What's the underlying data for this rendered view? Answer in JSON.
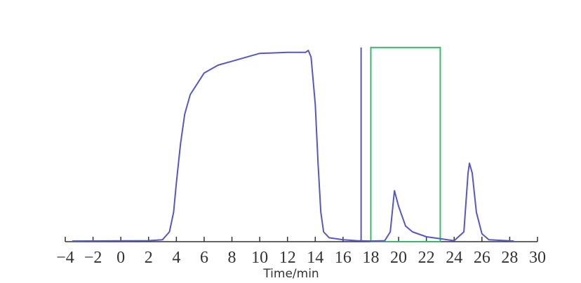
{
  "chart_data": {
    "type": "line",
    "x_label": "Time/min",
    "xlim": [
      -4,
      30
    ],
    "xticks": [
      {
        "value": -4,
        "label": "−4"
      },
      {
        "value": -2,
        "label": "−2"
      },
      0,
      2,
      4,
      6,
      8,
      10,
      12,
      14,
      16,
      18,
      20,
      22,
      24,
      26,
      28,
      30
    ],
    "ylim": [
      0,
      100
    ],
    "series": [
      {
        "color": "#5558c0",
        "x": [
          -3.5,
          2,
          3,
          3.5,
          3.8,
          4,
          4.3,
          4.6,
          5,
          6,
          7,
          8,
          10,
          12,
          13.3,
          13.5,
          13.7,
          14,
          14.2,
          14.4,
          14.6,
          15,
          16,
          17,
          18,
          19,
          19.4,
          19.7,
          20,
          20.5,
          21,
          22,
          23,
          24,
          24.7,
          25,
          25.1,
          25.3,
          25.6,
          26,
          26.5,
          28.3
        ],
        "values": [
          0.3,
          0.5,
          1,
          5,
          15,
          30,
          50,
          65,
          75,
          86,
          90,
          92,
          96,
          96.5,
          96.5,
          97.5,
          94,
          70,
          40,
          15,
          5,
          2,
          1,
          0.5,
          0.3,
          0.5,
          5,
          26,
          18,
          8,
          5,
          2.5,
          1.5,
          0.5,
          5,
          35,
          40,
          35,
          15,
          4,
          1,
          0.3
        ]
      }
    ],
    "marker_line": {
      "x": 17.3,
      "top": 99,
      "color": "#5558c0"
    },
    "window": {
      "x": [
        18,
        23
      ],
      "top": 99,
      "color": "#3cb86a"
    }
  }
}
